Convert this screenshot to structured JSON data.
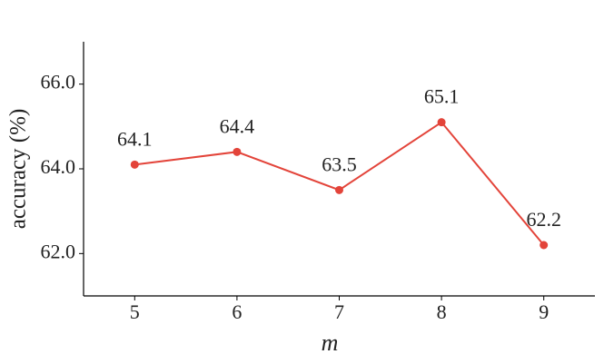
{
  "chart_data": {
    "type": "line",
    "x_label": "m",
    "y_label": "accuracy (%)",
    "x": [
      5,
      6,
      7,
      8,
      9
    ],
    "values": [
      64.1,
      64.4,
      63.5,
      65.1,
      62.2
    ],
    "color": "#e3443a",
    "xlim": [
      4.5,
      9.5
    ],
    "xticks": [
      5,
      6,
      7,
      8,
      9
    ],
    "ylim": [
      61,
      67
    ],
    "yticks": [
      {
        "value": 62,
        "label": "62.0"
      },
      {
        "value": 64,
        "label": "64.0"
      },
      {
        "value": 66,
        "label": "66.0"
      }
    ],
    "data_labels": true
  }
}
